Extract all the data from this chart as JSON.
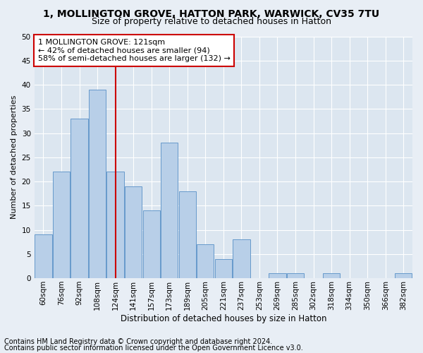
{
  "title": "1, MOLLINGTON GROVE, HATTON PARK, WARWICK, CV35 7TU",
  "subtitle": "Size of property relative to detached houses in Hatton",
  "xlabel": "Distribution of detached houses by size in Hatton",
  "ylabel": "Number of detached properties",
  "bar_values": [
    9,
    22,
    33,
    39,
    22,
    19,
    14,
    28,
    18,
    7,
    4,
    8,
    0,
    1,
    1,
    0,
    1,
    0,
    0,
    0,
    1
  ],
  "bin_labels": [
    "60sqm",
    "76sqm",
    "92sqm",
    "108sqm",
    "124sqm",
    "141sqm",
    "157sqm",
    "173sqm",
    "189sqm",
    "205sqm",
    "221sqm",
    "237sqm",
    "253sqm",
    "269sqm",
    "285sqm",
    "302sqm",
    "318sqm",
    "334sqm",
    "350sqm",
    "366sqm",
    "382sqm"
  ],
  "bar_color": "#b8cfe8",
  "bar_edge_color": "#6699cc",
  "vline_index": 4,
  "vline_color": "#cc0000",
  "annotation_text": "1 MOLLINGTON GROVE: 121sqm\n← 42% of detached houses are smaller (94)\n58% of semi-detached houses are larger (132) →",
  "annotation_box_color": "#ffffff",
  "annotation_box_edge_color": "#cc0000",
  "ylim": [
    0,
    50
  ],
  "yticks": [
    0,
    5,
    10,
    15,
    20,
    25,
    30,
    35,
    40,
    45,
    50
  ],
  "footer_line1": "Contains HM Land Registry data © Crown copyright and database right 2024.",
  "footer_line2": "Contains public sector information licensed under the Open Government Licence v3.0.",
  "background_color": "#e8eef5",
  "plot_background_color": "#dce6f0",
  "grid_color": "#ffffff",
  "title_fontsize": 10,
  "subtitle_fontsize": 9,
  "axis_label_fontsize": 8.5,
  "ylabel_fontsize": 8,
  "tick_fontsize": 7.5,
  "footer_fontsize": 7
}
